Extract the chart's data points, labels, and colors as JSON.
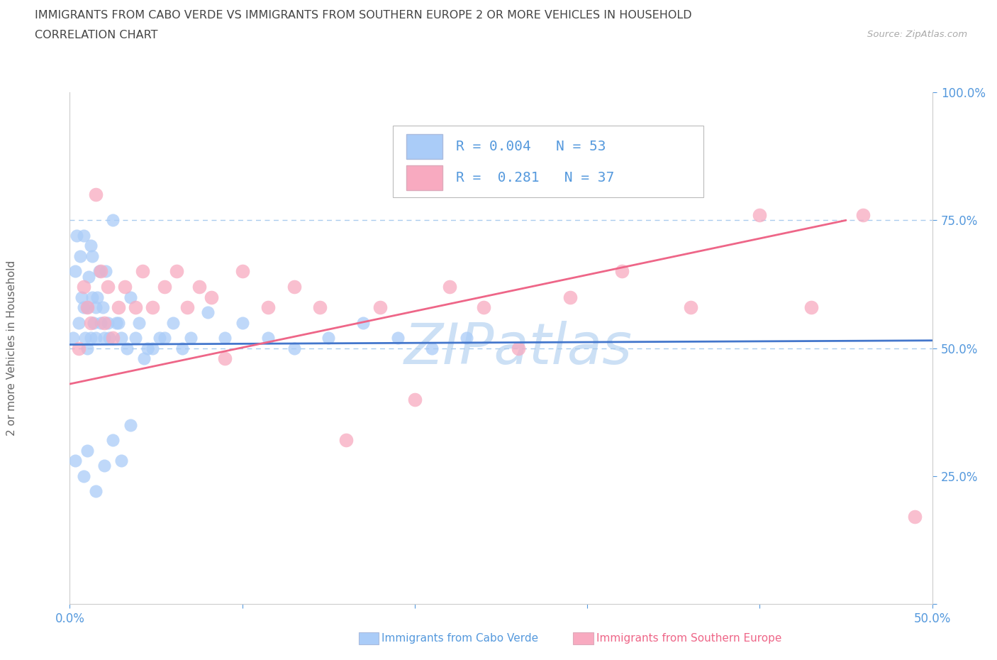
{
  "title_line1": "IMMIGRANTS FROM CABO VERDE VS IMMIGRANTS FROM SOUTHERN EUROPE 2 OR MORE VEHICLES IN HOUSEHOLD",
  "title_line2": "CORRELATION CHART",
  "source_text": "Source: ZipAtlas.com",
  "ylabel": "2 or more Vehicles in Household",
  "xlim": [
    0,
    0.5
  ],
  "ylim": [
    0,
    1.0
  ],
  "cabo_verde_R": "0.004",
  "cabo_verde_N": "53",
  "southern_europe_R": "0.281",
  "southern_europe_N": "37",
  "cabo_verde_color": "#aaccf8",
  "southern_europe_color": "#f8aac0",
  "cabo_verde_line_color": "#4477cc",
  "southern_europe_line_color": "#ee6688",
  "legend_label_1": "Immigrants from Cabo Verde",
  "legend_label_2": "Immigrants from Southern Europe",
  "watermark": "ZIPatlas",
  "watermark_color": "#cce0f5",
  "dashed_line_color": "#aaccee",
  "axis_label_color": "#5599dd",
  "title_color": "#444444",
  "source_color": "#aaaaaa",
  "spine_color": "#cccccc",
  "ylabel_color": "#666666",
  "cabo_verde_x": [
    0.002,
    0.003,
    0.004,
    0.005,
    0.006,
    0.007,
    0.008,
    0.008,
    0.009,
    0.01,
    0.01,
    0.011,
    0.012,
    0.012,
    0.013,
    0.013,
    0.014,
    0.015,
    0.015,
    0.016,
    0.017,
    0.018,
    0.019,
    0.02,
    0.021,
    0.022,
    0.023,
    0.025,
    0.027,
    0.03,
    0.033,
    0.035,
    0.038,
    0.04,
    0.043,
    0.048,
    0.052,
    0.06,
    0.065,
    0.07,
    0.08,
    0.09,
    0.1,
    0.115,
    0.13,
    0.15,
    0.17,
    0.19,
    0.21,
    0.23,
    0.055,
    0.045,
    0.028
  ],
  "cabo_verde_y": [
    0.52,
    0.48,
    0.55,
    0.5,
    0.6,
    0.58,
    0.64,
    0.56,
    0.52,
    0.5,
    0.54,
    0.58,
    0.52,
    0.48,
    0.55,
    0.6,
    0.52,
    0.54,
    0.5,
    0.56,
    0.58,
    0.5,
    0.52,
    0.48,
    0.55,
    0.52,
    0.5,
    0.68,
    0.52,
    0.5,
    0.48,
    0.55,
    0.5,
    0.52,
    0.46,
    0.48,
    0.5,
    0.52,
    0.48,
    0.5,
    0.54,
    0.5,
    0.52,
    0.5,
    0.48,
    0.5,
    0.52,
    0.5,
    0.48,
    0.5,
    0.5,
    0.48,
    0.52
  ],
  "southern_europe_x": [
    0.005,
    0.008,
    0.01,
    0.012,
    0.015,
    0.018,
    0.02,
    0.022,
    0.025,
    0.028,
    0.032,
    0.038,
    0.042,
    0.048,
    0.055,
    0.062,
    0.068,
    0.075,
    0.082,
    0.09,
    0.1,
    0.115,
    0.13,
    0.145,
    0.16,
    0.18,
    0.2,
    0.22,
    0.24,
    0.26,
    0.29,
    0.32,
    0.36,
    0.4,
    0.43,
    0.46,
    0.49
  ],
  "southern_europe_y": [
    0.5,
    0.48,
    0.55,
    0.52,
    0.58,
    0.8,
    0.55,
    0.6,
    0.5,
    0.55,
    0.58,
    0.55,
    0.62,
    0.55,
    0.58,
    0.62,
    0.55,
    0.6,
    0.58,
    0.45,
    0.62,
    0.55,
    0.6,
    0.55,
    0.3,
    0.55,
    0.38,
    0.6,
    0.55,
    0.48,
    0.58,
    0.62,
    0.55,
    0.75,
    0.55,
    0.75,
    0.17
  ]
}
